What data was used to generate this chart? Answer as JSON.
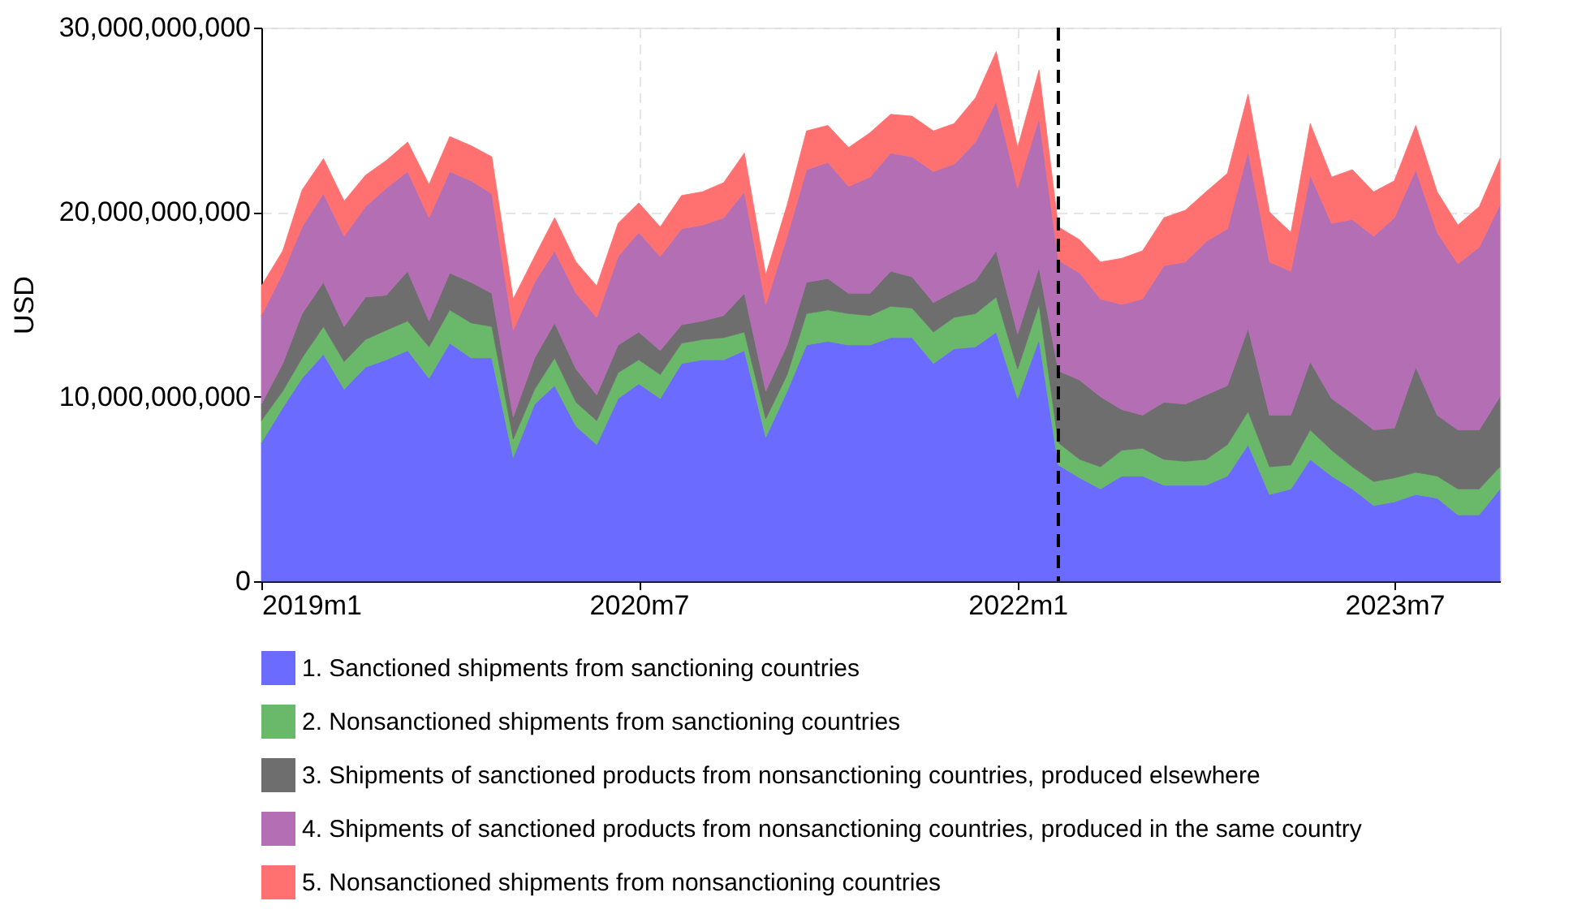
{
  "chart_data": {
    "type": "area",
    "stacked": true,
    "ylabel": "USD",
    "x": [
      "2019-01",
      "2019-02",
      "2019-03",
      "2019-04",
      "2019-05",
      "2019-06",
      "2019-07",
      "2019-08",
      "2019-09",
      "2019-10",
      "2019-11",
      "2019-12",
      "2020-01",
      "2020-02",
      "2020-03",
      "2020-04",
      "2020-05",
      "2020-06",
      "2020-07",
      "2020-08",
      "2020-09",
      "2020-10",
      "2020-11",
      "2020-12",
      "2021-01",
      "2021-02",
      "2021-03",
      "2021-04",
      "2021-05",
      "2021-06",
      "2021-07",
      "2021-08",
      "2021-09",
      "2021-10",
      "2021-11",
      "2021-12",
      "2022-01",
      "2022-02",
      "2022-03",
      "2022-04",
      "2022-05",
      "2022-06",
      "2022-07",
      "2022-08",
      "2022-09",
      "2022-10",
      "2022-11",
      "2022-12",
      "2023-01",
      "2023-02",
      "2023-03",
      "2023-04",
      "2023-05",
      "2023-06",
      "2023-07",
      "2023-08",
      "2023-09",
      "2023-10",
      "2023-11",
      "2023-12"
    ],
    "series": [
      {
        "name": "1. Sanctioned shipments from sanctioning countries",
        "color": "#6b6bff",
        "values": [
          7500000000.0,
          9400000000.0,
          11000000000.0,
          12300000000.0,
          10400000000.0,
          11600000000.0,
          12000000000.0,
          12500000000.0,
          11000000000.0,
          12900000000.0,
          12100000000.0,
          12100000000.0,
          6700000000.0,
          9600000000.0,
          10600000000.0,
          8400000000.0,
          7400000000.0,
          9900000000.0,
          10700000000.0,
          9900000000.0,
          11800000000.0,
          12000000000.0,
          12000000000.0,
          12500000000.0,
          7800000000.0,
          10300000000.0,
          12800000000.0,
          13000000000.0,
          12800000000.0,
          12800000000.0,
          13200000000.0,
          13200000000.0,
          11800000000.0,
          12600000000.0,
          12700000000.0,
          13500000000.0,
          9900000000.0,
          13100000000.0,
          6300000000.0,
          5600000000.0,
          5000000000.0,
          5700000000.0,
          5700000000.0,
          5200000000.0,
          5200000000.0,
          5200000000.0,
          5700000000.0,
          7400000000.0,
          4700000000.0,
          5000000000.0,
          6600000000.0,
          5700000000.0,
          5000000000.0,
          4100000000.0,
          4300000000.0,
          4700000000.0,
          4500000000.0,
          3600000000.0,
          3600000000.0,
          5000000000.0
        ]
      },
      {
        "name": "2. Nonsanctioned shipments from sanctioning countries",
        "color": "#6ab86a",
        "values": [
          1200000000.0,
          900000000.0,
          1100000000.0,
          1500000000.0,
          1500000000.0,
          1500000000.0,
          1600000000.0,
          1600000000.0,
          1700000000.0,
          1800000000.0,
          1900000000.0,
          1700000000.0,
          1000000000.0,
          800000000.0,
          1500000000.0,
          1300000000.0,
          1300000000.0,
          1400000000.0,
          1300000000.0,
          1300000000.0,
          1100000000.0,
          1100000000.0,
          1200000000.0,
          1000000000.0,
          1000000000.0,
          900000000.0,
          1700000000.0,
          1700000000.0,
          1700000000.0,
          1600000000.0,
          1700000000.0,
          1600000000.0,
          1700000000.0,
          1700000000.0,
          1800000000.0,
          1900000000.0,
          1600000000.0,
          1900000000.0,
          1200000000.0,
          1000000000.0,
          1200000000.0,
          1400000000.0,
          1500000000.0,
          1400000000.0,
          1300000000.0,
          1400000000.0,
          1700000000.0,
          1800000000.0,
          1500000000.0,
          1300000000.0,
          1600000000.0,
          1400000000.0,
          1200000000.0,
          1300000000.0,
          1300000000.0,
          1200000000.0,
          1200000000.0,
          1400000000.0,
          1400000000.0,
          1200000000.0
        ]
      },
      {
        "name": "3. Shipments of sanctioned products from nonsanctioning countries, produced elsewhere",
        "color": "#6e6e6e",
        "values": [
          900000000.0,
          1500000000.0,
          2400000000.0,
          2400000000.0,
          1900000000.0,
          2300000000.0,
          1900000000.0,
          2700000000.0,
          1400000000.0,
          2000000000.0,
          2200000000.0,
          1800000000.0,
          1200000000.0,
          1700000000.0,
          1900000000.0,
          1800000000.0,
          1400000000.0,
          1500000000.0,
          1500000000.0,
          1300000000.0,
          1000000000.0,
          1000000000.0,
          1200000000.0,
          2100000000.0,
          1500000000.0,
          1600000000.0,
          1700000000.0,
          1700000000.0,
          1100000000.0,
          1200000000.0,
          1900000000.0,
          1700000000.0,
          1600000000.0,
          1400000000.0,
          1800000000.0,
          2500000000.0,
          1900000000.0,
          2000000000.0,
          3900000000.0,
          4300000000.0,
          3800000000.0,
          2200000000.0,
          1800000000.0,
          3100000000.0,
          3100000000.0,
          3500000000.0,
          3200000000.0,
          4500000000.0,
          2800000000.0,
          2700000000.0,
          3700000000.0,
          2800000000.0,
          2900000000.0,
          2800000000.0,
          2700000000.0,
          5700000000.0,
          3300000000.0,
          3200000000.0,
          3200000000.0,
          3800000000.0
        ]
      },
      {
        "name": "4. Shipments of sanctioned products from nonsanctioning countries, produced in the same country",
        "color": "#b46eb4",
        "values": [
          4800000000.0,
          4900000000.0,
          4700000000.0,
          4800000000.0,
          4900000000.0,
          4900000000.0,
          5800000000.0,
          5400000000.0,
          5600000000.0,
          5500000000.0,
          5500000000.0,
          5400000000.0,
          4700000000.0,
          4100000000.0,
          3900000000.0,
          4100000000.0,
          4200000000.0,
          4800000000.0,
          5400000000.0,
          5100000000.0,
          5200000000.0,
          5200000000.0,
          5300000000.0,
          5500000000.0,
          4700000000.0,
          5900000000.0,
          6100000000.0,
          6300000000.0,
          5800000000.0,
          6300000000.0,
          6400000000.0,
          6500000000.0,
          7100000000.0,
          6900000000.0,
          7500000000.0,
          8100000000.0,
          7900000000.0,
          8100000000.0,
          6000000000.0,
          5800000000.0,
          5300000000.0,
          5700000000.0,
          6300000000.0,
          7400000000.0,
          7700000000.0,
          8300000000.0,
          8500000000.0,
          9600000000.0,
          8300000000.0,
          7800000000.0,
          10100000000.0,
          9500000000.0,
          10500000000.0,
          10500000000.0,
          11400000000.0,
          10700000000.0,
          9900000000.0,
          9000000000.0,
          9900000000.0,
          10400000000.0
        ]
      },
      {
        "name": "5. Nonsanctioned shipments from nonsanctioning countries",
        "color": "#ff7070",
        "values": [
          1600000000.0,
          1200000000.0,
          2000000000.0,
          1900000000.0,
          1900000000.0,
          1700000000.0,
          1500000000.0,
          1600000000.0,
          1800000000.0,
          1900000000.0,
          1900000000.0,
          2000000000.0,
          1700000000.0,
          1400000000.0,
          1800000000.0,
          1700000000.0,
          1700000000.0,
          1800000000.0,
          1600000000.0,
          1600000000.0,
          1800000000.0,
          1800000000.0,
          1900000000.0,
          2100000000.0,
          1600000000.0,
          1700000000.0,
          2100000000.0,
          2000000000.0,
          2100000000.0,
          2400000000.0,
          2100000000.0,
          2200000000.0,
          2200000000.0,
          2200000000.0,
          2400000000.0,
          2700000000.0,
          2200000000.0,
          2600000000.0,
          1800000000.0,
          1800000000.0,
          2000000000.0,
          2500000000.0,
          2600000000.0,
          2600000000.0,
          2800000000.0,
          2700000000.0,
          3000000000.0,
          3100000000.0,
          2700000000.0,
          2100000000.0,
          2800000000.0,
          2500000000.0,
          2700000000.0,
          2400000000.0,
          2000000000.0,
          2400000000.0,
          2200000000.0,
          2100000000.0,
          2200000000.0,
          2500000000.0
        ]
      }
    ],
    "xlim": [
      "2019-01",
      "2023-12"
    ],
    "xticks": [
      {
        "value": "2019-01",
        "label": "2019m1"
      },
      {
        "value": "2020-07",
        "label": "2020m7"
      },
      {
        "value": "2022-01",
        "label": "2022m1"
      },
      {
        "value": "2023-07",
        "label": "2023m7"
      }
    ],
    "ylim": [
      0,
      30000000000
    ],
    "yticks": [
      0,
      {
        "value": 10000000000,
        "label": "10,000,000,000"
      },
      {
        "value": 20000000000,
        "label": "20,000,000,000"
      },
      {
        "value": 30000000000,
        "label": "30,000,000,000"
      }
    ],
    "ref_lines": [
      {
        "axis": "x",
        "value": "2022-03",
        "color": "#000000",
        "line_style": "dashed"
      }
    ],
    "grid": true,
    "legend": "bottom"
  }
}
